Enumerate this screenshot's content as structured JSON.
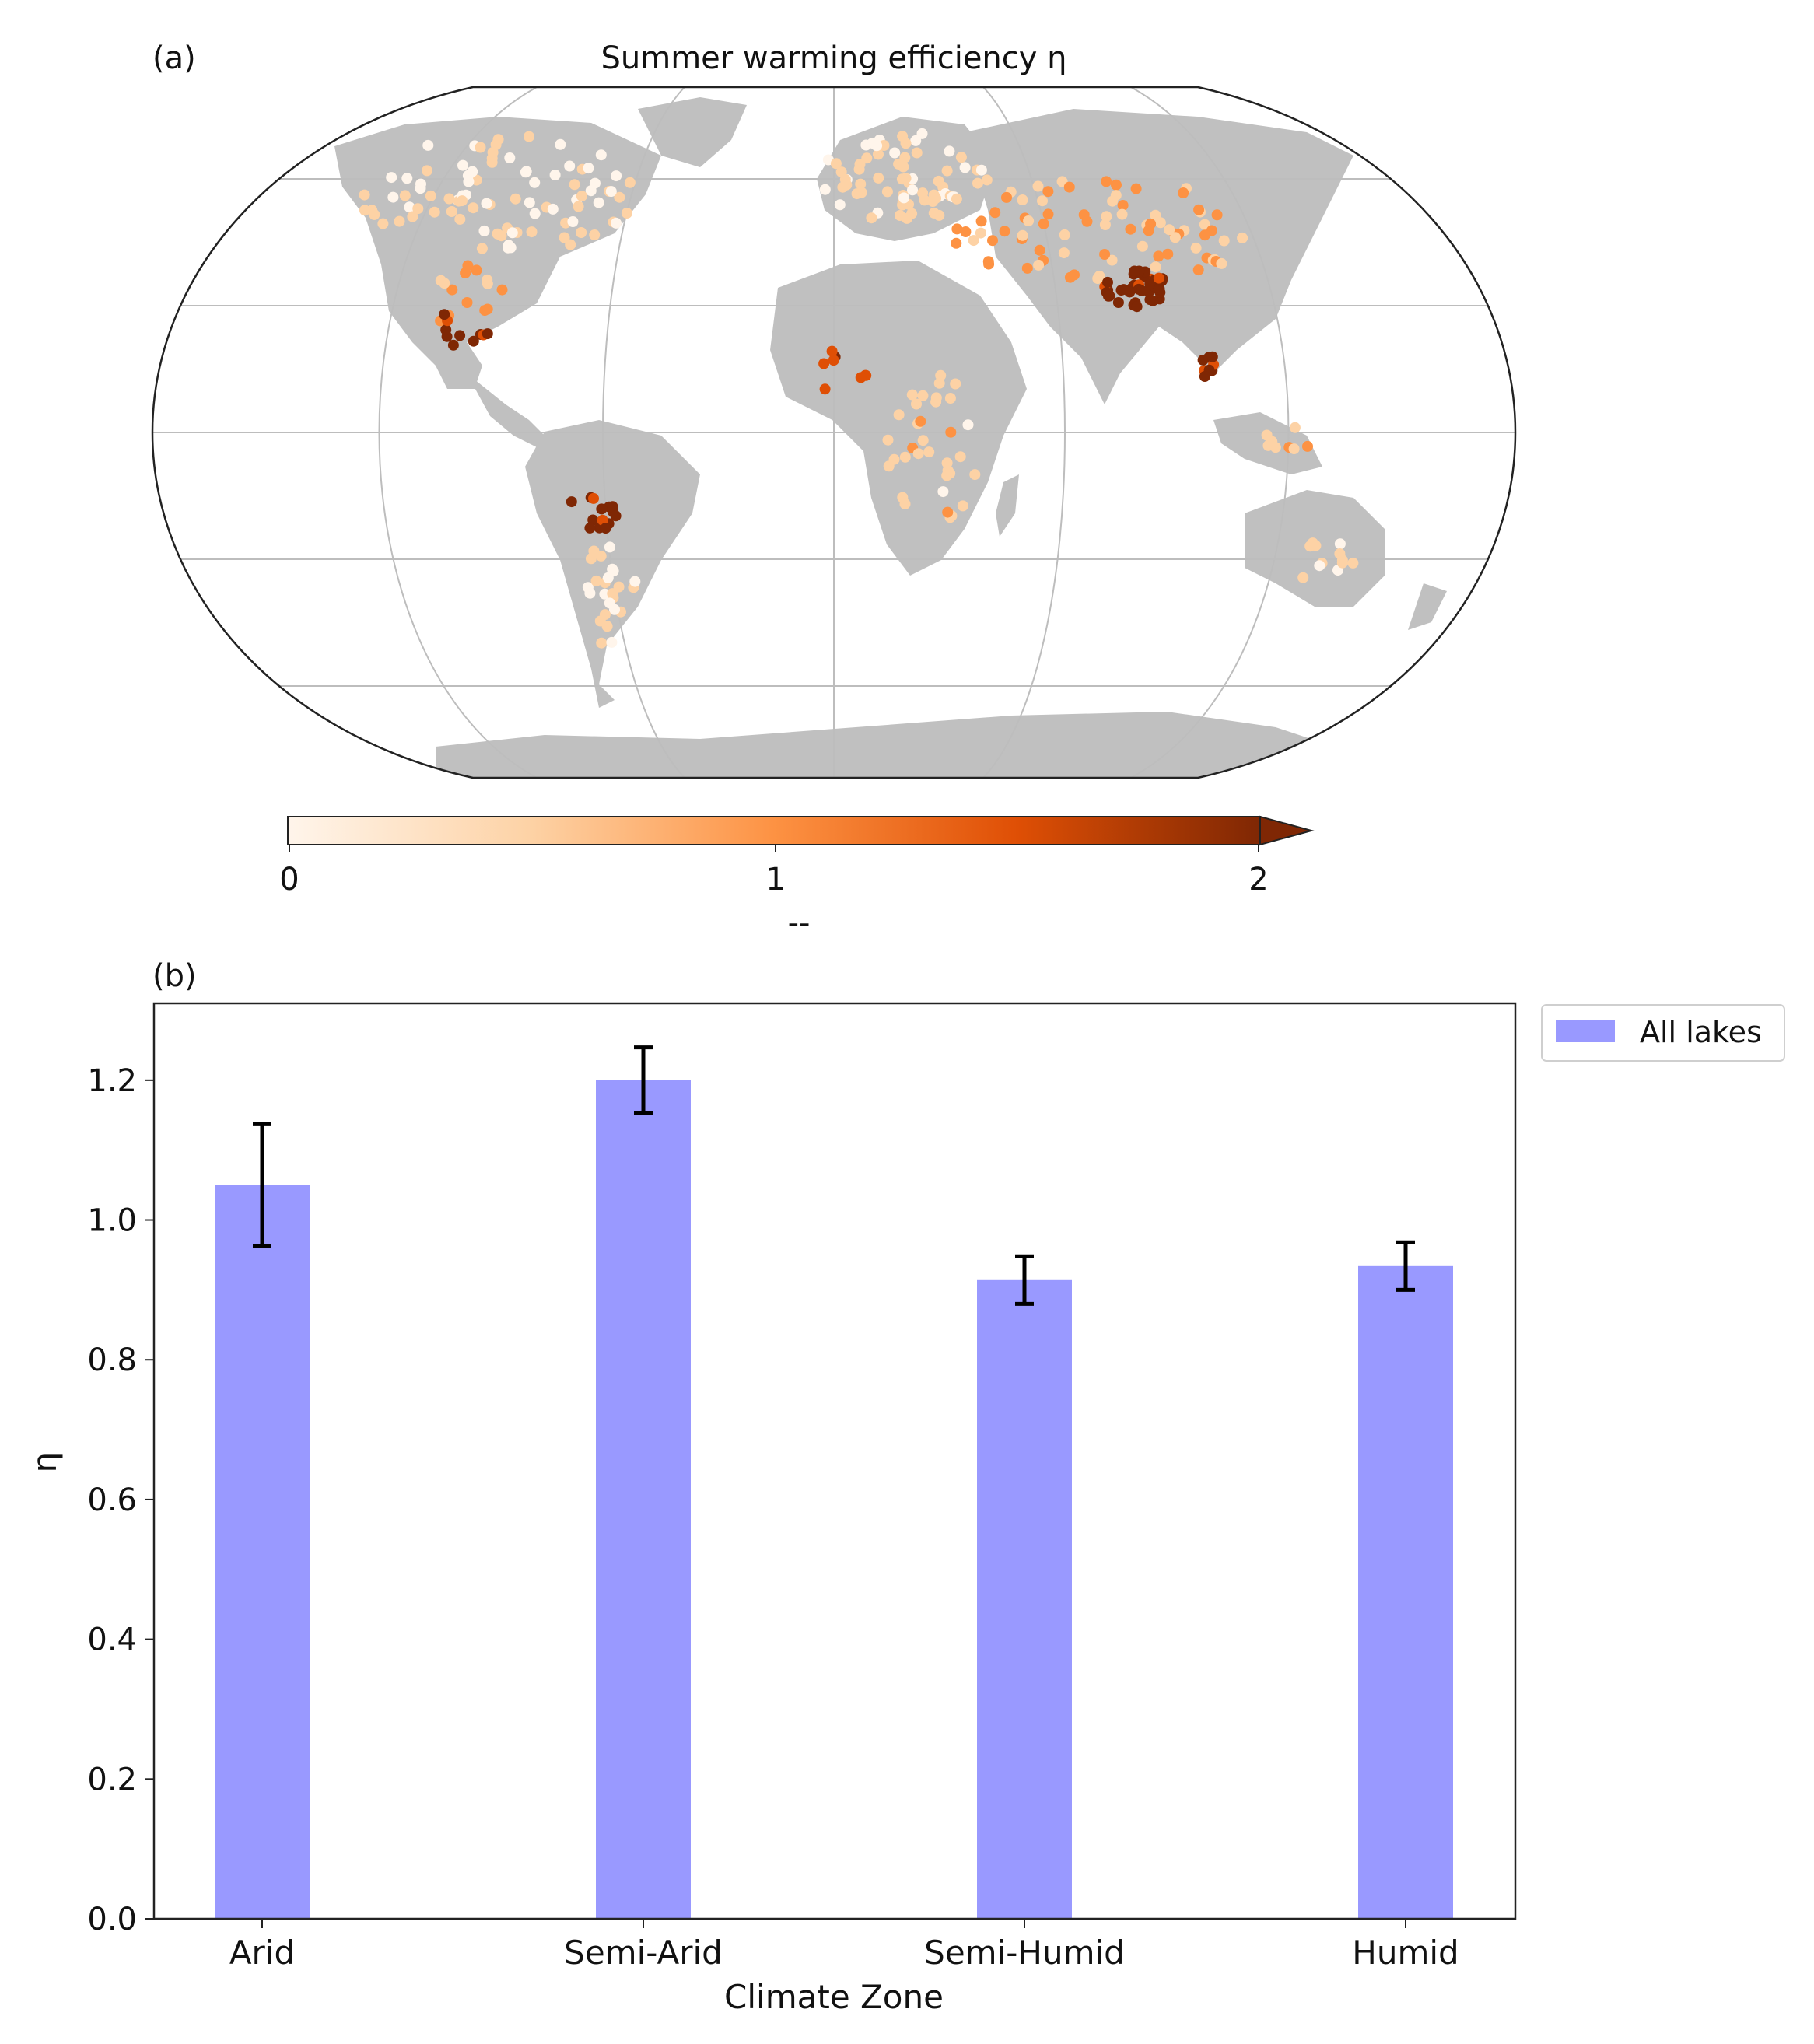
{
  "panel_a": {
    "label": "(a)",
    "title": "Summer warming efficiency η",
    "colorbar": {
      "ticks": [
        "0",
        "1",
        "2"
      ],
      "label": "--",
      "min": 0,
      "max": 2,
      "extend": "max",
      "colors": [
        "#fff5eb",
        "#fdd2a5",
        "#fd9243",
        "#df4f05",
        "#7f2704"
      ]
    },
    "land_color": "#c0c0c0",
    "projection": "Robinson",
    "gridlines": true
  },
  "panel_b": {
    "label": "(b)",
    "legend": [
      "All lakes"
    ]
  },
  "chart_data": {
    "type": "bar",
    "categories": [
      "Arid",
      "Semi-Arid",
      "Semi-Humid",
      "Humid"
    ],
    "series": [
      {
        "name": "All lakes",
        "values": [
          1.05,
          1.2,
          0.914,
          0.934
        ],
        "error": [
          0.087,
          0.047,
          0.034,
          0.034
        ],
        "color": "#9999ff"
      }
    ],
    "xlabel": "Climate Zone",
    "ylabel": "η",
    "ylim": [
      0,
      1.31
    ],
    "yticks": [
      "0.0",
      "0.2",
      "0.4",
      "0.6",
      "0.8",
      "1.0",
      "1.2"
    ],
    "legend_position": "upper-right-outside",
    "grid": false
  }
}
